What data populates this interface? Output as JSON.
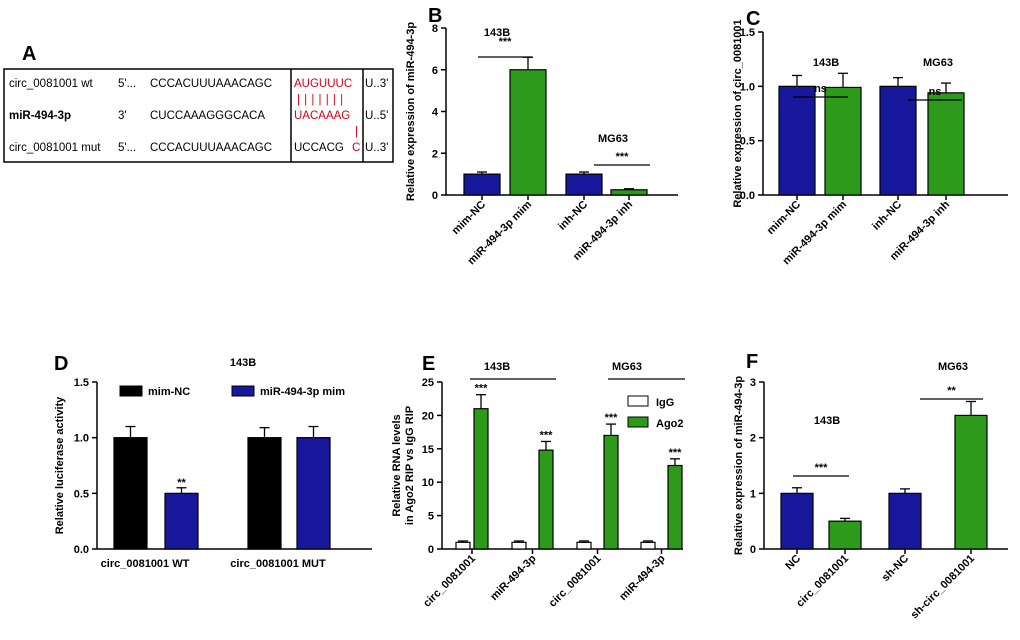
{
  "colors": {
    "blue": "#17189c",
    "green": "#2e9a1c",
    "black": "#000000",
    "white": "#ffffff",
    "red": "#d0021b"
  },
  "panelA": {
    "letter": "A",
    "rows": [
      {
        "name": "circ_0081001 wt",
        "prefix": "5'...",
        "seq": "CCCACUUUAAACAGC",
        "site": "AUGUUUC",
        "suffix": "U..3'"
      },
      {
        "name": "miR-494-3p",
        "prefix": "3'",
        "seq": "CUCCAAAGGGCACA",
        "site": "UACAAAG",
        "suffix": "U..5'"
      },
      {
        "name": "circ_0081001 mut",
        "prefix": "5'...",
        "seq": "CCCACUUUAAACAGC",
        "site": "UCCACG",
        "site_red": "C",
        "suffix": "U..3'"
      }
    ],
    "pairing": "| | | | | | |",
    "pairing_extra": "|"
  },
  "chart_data": [
    {
      "panel": "B",
      "type": "bar",
      "title": "",
      "ylabel": "Relative expression of miR-494-3p",
      "ylim": [
        0,
        8
      ],
      "yticks": [
        0,
        2,
        4,
        6,
        8
      ],
      "categories": [
        "mim-NC",
        "miR-494-3p mim",
        "inh-NC",
        "miR-494-3p inh"
      ],
      "values": [
        1.0,
        6.0,
        1.0,
        0.25
      ],
      "errors": [
        0.1,
        0.6,
        0.1,
        0.05
      ],
      "colors": [
        "blue",
        "green",
        "blue",
        "green"
      ],
      "group_labels": [
        {
          "text": "143B"
        },
        {
          "text": "MG63"
        }
      ],
      "significance": [
        {
          "text": "***",
          "bars": [
            0,
            1
          ]
        },
        {
          "text": "***",
          "bars": [
            2,
            3
          ]
        }
      ]
    },
    {
      "panel": "C",
      "type": "bar",
      "title": "",
      "ylabel": "Relative expression of circ_0081001",
      "ylim": [
        0,
        1.5
      ],
      "yticks": [
        0.0,
        0.5,
        1.0,
        1.5
      ],
      "categories": [
        "mim-NC",
        "miR-494-3p mim",
        "inh-NC",
        "miR-494-3p inh"
      ],
      "values": [
        1.0,
        0.99,
        1.0,
        0.94
      ],
      "errors": [
        0.1,
        0.13,
        0.08,
        0.09
      ],
      "colors": [
        "blue",
        "green",
        "blue",
        "green"
      ],
      "group_labels": [
        {
          "text": "143B"
        },
        {
          "text": "MG63"
        }
      ],
      "significance": [
        {
          "text": "ns",
          "bars": [
            0,
            1
          ]
        },
        {
          "text": "ns",
          "bars": [
            2,
            3
          ]
        }
      ]
    },
    {
      "panel": "D",
      "type": "bar",
      "title": "143B",
      "ylabel": "Relative luciferase activity",
      "ylim": [
        0,
        1.5
      ],
      "yticks": [
        0.0,
        0.5,
        1.0,
        1.5
      ],
      "categories": [
        "circ_0081001 WT",
        "circ_0081001 MUT"
      ],
      "series": [
        {
          "name": "mim-NC",
          "color": "black",
          "values": [
            1.0,
            1.0
          ],
          "errors": [
            0.1,
            0.09
          ]
        },
        {
          "name": "miR-494-3p mim",
          "color": "blue",
          "values": [
            0.5,
            1.0
          ],
          "errors": [
            0.05,
            0.1
          ]
        }
      ],
      "annotations": [
        {
          "text": "**",
          "category": 0,
          "series": 1
        }
      ],
      "legend": "top"
    },
    {
      "panel": "E",
      "type": "bar",
      "title": "",
      "ylabel": "Relative RNA levels in Ago2 RIP vs IgG RIP",
      "ylim": [
        0,
        25
      ],
      "yticks": [
        0,
        5,
        10,
        15,
        20,
        25
      ],
      "categories": [
        "circ_0081001",
        "miR-494-3p",
        "circ_0081001",
        "miR-494-3p"
      ],
      "series": [
        {
          "name": "IgG",
          "color": "white",
          "values": [
            1.0,
            1.0,
            1.0,
            1.0
          ],
          "errors": [
            0.2,
            0.2,
            0.2,
            0.2
          ]
        },
        {
          "name": "Ago2",
          "color": "green",
          "values": [
            21.0,
            14.8,
            17.0,
            12.5
          ],
          "errors": [
            2.1,
            1.3,
            1.7,
            1.0
          ]
        }
      ],
      "annotations": [
        {
          "text": "***",
          "category": 0,
          "series": 1
        },
        {
          "text": "***",
          "category": 1,
          "series": 1
        },
        {
          "text": "***",
          "category": 2,
          "series": 1
        },
        {
          "text": "***",
          "category": 3,
          "series": 1
        }
      ],
      "group_labels": [
        {
          "text": "143B"
        },
        {
          "text": "MG63"
        }
      ],
      "legend": "top-right"
    },
    {
      "panel": "F",
      "type": "bar",
      "title": "",
      "ylabel": "Relative expression of miR-494-3p",
      "ylim": [
        0,
        3
      ],
      "yticks": [
        0,
        1,
        2,
        3
      ],
      "categories": [
        "NC",
        "circ_0081001",
        "sh-NC",
        "sh-circ_0081001"
      ],
      "values": [
        1.0,
        0.5,
        1.0,
        2.4
      ],
      "errors": [
        0.1,
        0.05,
        0.08,
        0.25
      ],
      "colors": [
        "blue",
        "green",
        "blue",
        "green"
      ],
      "group_labels": [
        {
          "text": "143B"
        },
        {
          "text": "MG63"
        }
      ],
      "significance": [
        {
          "text": "***",
          "bars": [
            0,
            1
          ]
        },
        {
          "text": "**",
          "bars": [
            2,
            3
          ]
        }
      ]
    }
  ]
}
